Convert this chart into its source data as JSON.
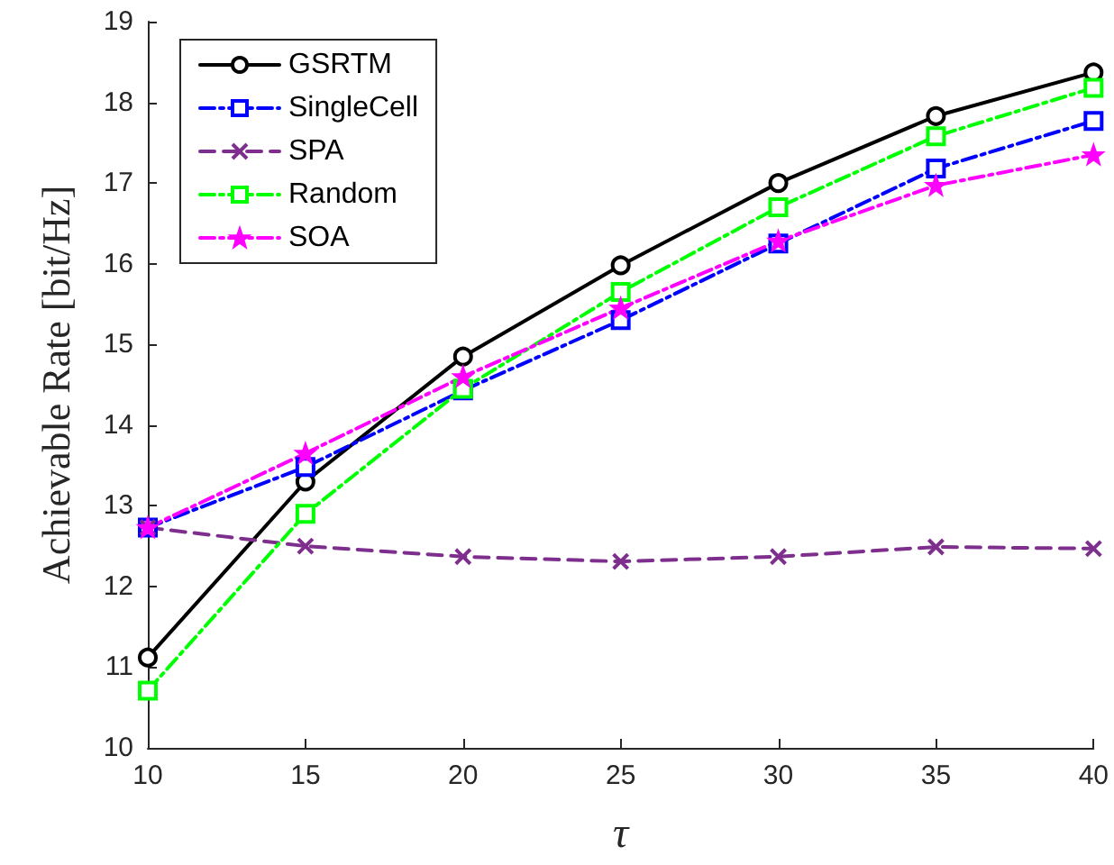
{
  "chart_data": {
    "type": "line",
    "xlabel": "τ",
    "ylabel": "Achievable Rate [bit/Hz]",
    "x": [
      10,
      15,
      20,
      25,
      30,
      35,
      40
    ],
    "series": [
      {
        "name": "GSRTM",
        "color": "#000000",
        "marker": "circle",
        "line_style": "solid",
        "values": [
          11.12,
          13.3,
          14.85,
          15.98,
          17.0,
          17.83,
          18.37
        ]
      },
      {
        "name": "SingleCell",
        "color": "#0000ff",
        "marker": "square",
        "line_style": "dashdot",
        "values": [
          12.73,
          13.48,
          14.43,
          15.3,
          16.25,
          17.18,
          17.77
        ]
      },
      {
        "name": "SPA",
        "color": "#7e2f8e",
        "marker": "cross",
        "line_style": "dashed",
        "values": [
          12.73,
          12.5,
          12.37,
          12.31,
          12.37,
          12.49,
          12.47
        ]
      },
      {
        "name": "Random",
        "color": "#00ff00",
        "marker": "square",
        "line_style": "dashdot",
        "values": [
          10.71,
          12.9,
          14.45,
          15.65,
          16.7,
          17.58,
          18.18
        ]
      },
      {
        "name": "SOA",
        "color": "#ff00ff",
        "marker": "star",
        "line_style": "dashdot",
        "values": [
          12.73,
          13.65,
          14.6,
          15.45,
          16.28,
          16.97,
          17.35
        ]
      }
    ],
    "xlim": [
      10,
      40
    ],
    "xticks": [
      10,
      15,
      20,
      25,
      30,
      35,
      40
    ],
    "ylim": [
      10,
      19
    ],
    "yticks": [
      10,
      11,
      12,
      13,
      14,
      15,
      16,
      17,
      18,
      19
    ],
    "grid": false,
    "legend": "top left"
  }
}
